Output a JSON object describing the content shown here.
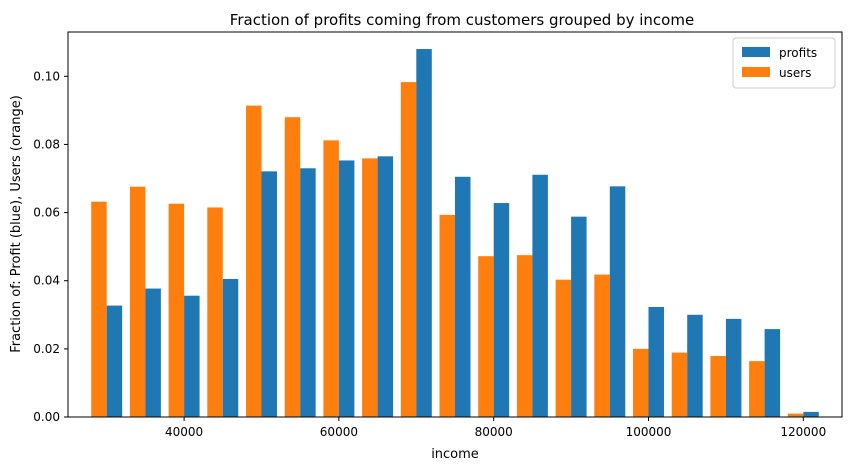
{
  "chart_data": {
    "type": "bar",
    "title": "Fraction of profits coming from customers grouped by income",
    "xlabel": "income",
    "ylabel": "Fraction of: Profit (blue), Users (orange)",
    "xlim": [
      25000,
      125000
    ],
    "ylim": [
      0,
      0.113
    ],
    "xticks": [
      40000,
      60000,
      80000,
      100000,
      120000
    ],
    "yticks": [
      0.0,
      0.02,
      0.04,
      0.06,
      0.08,
      0.1
    ],
    "xtick_labels": [
      "40000",
      "60000",
      "80000",
      "100000",
      "120000"
    ],
    "ytick_labels": [
      "0.00",
      "0.02",
      "0.04",
      "0.06",
      "0.08",
      "0.10"
    ],
    "bin_starts": [
      28000,
      33000,
      38000,
      43000,
      48000,
      53000,
      58000,
      63000,
      68000,
      73000,
      78000,
      83000,
      88000,
      93000,
      98000,
      103000,
      108000,
      113000,
      118000
    ],
    "bin_width": 4000,
    "legend_position": "top-right",
    "grid": false,
    "series": [
      {
        "name": "profits",
        "color": "#1f77b4",
        "values": [
          0.0327,
          0.0377,
          0.0356,
          0.0405,
          0.0721,
          0.073,
          0.0753,
          0.0765,
          0.108,
          0.0705,
          0.0628,
          0.0711,
          0.0588,
          0.0677,
          0.0323,
          0.03,
          0.0288,
          0.0258,
          0.0015
        ]
      },
      {
        "name": "users",
        "color": "#ff7f0e",
        "values": [
          0.0632,
          0.0676,
          0.0626,
          0.0615,
          0.0914,
          0.088,
          0.0812,
          0.0759,
          0.0983,
          0.0593,
          0.0472,
          0.0475,
          0.0403,
          0.0418,
          0.02,
          0.0189,
          0.0179,
          0.0164,
          0.001
        ]
      }
    ]
  }
}
